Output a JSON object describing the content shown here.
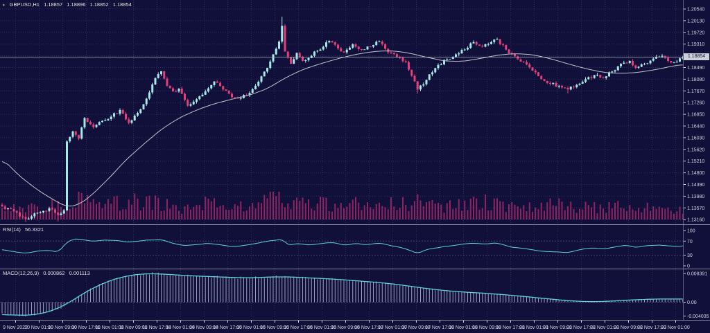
{
  "title": {
    "symbol": "GBPUSD,H1",
    "open": "1.18857",
    "high": "1.18896",
    "low": "1.18852",
    "close": "1.18854"
  },
  "price_axis": {
    "ticks": [
      "1.20540",
      "1.20130",
      "1.19720",
      "1.19310",
      "1.18900",
      "1.18490",
      "1.18080",
      "1.17670",
      "1.17260",
      "1.16850",
      "1.16440",
      "1.16030",
      "1.15620",
      "1.15210",
      "1.14800",
      "1.14390",
      "1.13980",
      "1.13570",
      "1.13160"
    ],
    "current_price_label": "1.18854"
  },
  "time_axis": {
    "labels": [
      "9 Nov 2022",
      "10 Nov 01:00",
      "10 Nov 09:00",
      "10 Nov 17:00",
      "11 Nov 01:00",
      "11 Nov 09:00",
      "11 Nov 17:00",
      "14 Nov 01:00",
      "14 Nov 09:00",
      "14 Nov 17:00",
      "15 Nov 01:00",
      "15 Nov 09:00",
      "15 Nov 17:00",
      "16 Nov 01:00",
      "16 Nov 09:00",
      "16 Nov 17:00",
      "17 Nov 01:00",
      "17 Nov 09:00",
      "17 Nov 17:00",
      "18 Nov 01:00",
      "18 Nov 09:00",
      "18 Nov 17:00",
      "21 Nov 01:00",
      "21 Nov 09:00",
      "21 Nov 17:00",
      "22 Nov 01:00",
      "22 Nov 09:00",
      "22 Nov 17:00",
      "23 Nov 01:00"
    ]
  },
  "colors": {
    "background": "#10103a",
    "grid": "#2e2e62",
    "bull": "#a6e9e6",
    "bear": "#e43f78",
    "ma_line": "#c4c4cc",
    "volume": "#8e2560",
    "indicator_line": "#5fd4d8",
    "macd_histogram": "#9aa0c4",
    "axis_text": "#d2d2e0",
    "separator": "#8c8ca0",
    "price_line": "#b4b4c0",
    "badge_bg": "#ccd0d8",
    "badge_text": "#101038",
    "level_line": "#40407a"
  },
  "chart_data": {
    "type": "candlestick+indicators",
    "symbol": "GBPUSD",
    "timeframe": "H1",
    "candle_count": 232,
    "panels": [
      "price+volume",
      "RSI",
      "MACD"
    ],
    "y_axis_range": [
      1.1316,
      1.2054
    ],
    "price_close_keypoints": [
      [
        0,
        1.1362
      ],
      [
        4,
        1.1345
      ],
      [
        8,
        1.1318
      ],
      [
        12,
        1.134
      ],
      [
        16,
        1.1355
      ],
      [
        19,
        1.1332
      ],
      [
        21,
        1.1348
      ],
      [
        22,
        1.159
      ],
      [
        24,
        1.1625
      ],
      [
        26,
        1.16
      ],
      [
        28,
        1.1672
      ],
      [
        31,
        1.164
      ],
      [
        34,
        1.1662
      ],
      [
        36,
        1.1668
      ],
      [
        40,
        1.17
      ],
      [
        43,
        1.1655
      ],
      [
        46,
        1.169
      ],
      [
        49,
        1.174
      ],
      [
        52,
        1.1812
      ],
      [
        54,
        1.1836
      ],
      [
        56,
        1.1785
      ],
      [
        58,
        1.1765
      ],
      [
        60,
        1.1775
      ],
      [
        63,
        1.1715
      ],
      [
        66,
        1.1738
      ],
      [
        69,
        1.1765
      ],
      [
        72,
        1.18
      ],
      [
        75,
        1.1772
      ],
      [
        78,
        1.1745
      ],
      [
        81,
        1.1742
      ],
      [
        84,
        1.176
      ],
      [
        88,
        1.1818
      ],
      [
        91,
        1.187
      ],
      [
        94,
        1.194
      ],
      [
        95,
        1.1995
      ],
      [
        96,
        1.1905
      ],
      [
        98,
        1.1862
      ],
      [
        100,
        1.19
      ],
      [
        102,
        1.1872
      ],
      [
        104,
        1.1882
      ],
      [
        106,
        1.1905
      ],
      [
        108,
        1.1912
      ],
      [
        111,
        1.1942
      ],
      [
        114,
        1.1916
      ],
      [
        116,
        1.1902
      ],
      [
        119,
        1.193
      ],
      [
        122,
        1.1912
      ],
      [
        125,
        1.1922
      ],
      [
        128,
        1.194
      ],
      [
        131,
        1.1902
      ],
      [
        134,
        1.1885
      ],
      [
        137,
        1.1868
      ],
      [
        139,
        1.182
      ],
      [
        141,
        1.1772
      ],
      [
        143,
        1.179
      ],
      [
        145,
        1.1825
      ],
      [
        148,
        1.1858
      ],
      [
        151,
        1.1878
      ],
      [
        154,
        1.1895
      ],
      [
        157,
        1.1912
      ],
      [
        160,
        1.1938
      ],
      [
        163,
        1.1922
      ],
      [
        166,
        1.1938
      ],
      [
        168,
        1.1948
      ],
      [
        171,
        1.1912
      ],
      [
        174,
        1.1888
      ],
      [
        177,
        1.1868
      ],
      [
        180,
        1.1838
      ],
      [
        183,
        1.1808
      ],
      [
        186,
        1.1792
      ],
      [
        189,
        1.1785
      ],
      [
        192,
        1.1772
      ],
      [
        195,
        1.1788
      ],
      [
        198,
        1.1808
      ],
      [
        201,
        1.1822
      ],
      [
        204,
        1.1812
      ],
      [
        207,
        1.1835
      ],
      [
        210,
        1.1862
      ],
      [
        213,
        1.1872
      ],
      [
        215,
        1.1848
      ],
      [
        218,
        1.1862
      ],
      [
        221,
        1.188
      ],
      [
        224,
        1.189
      ],
      [
        226,
        1.1872
      ],
      [
        228,
        1.1868
      ],
      [
        231,
        1.18854
      ]
    ],
    "wick_overrides": [
      {
        "i": 95,
        "high": 1.2027
      },
      {
        "i": 8,
        "low": 1.1308
      },
      {
        "i": 19,
        "low": 1.131
      },
      {
        "i": 22,
        "low": 1.1348
      },
      {
        "i": 141,
        "low": 1.1758
      },
      {
        "i": 192,
        "low": 1.1758
      }
    ],
    "ma_keypoints": [
      [
        0,
        1.153
      ],
      [
        6,
        1.1468
      ],
      [
        12,
        1.142
      ],
      [
        18,
        1.1382
      ],
      [
        22,
        1.136
      ],
      [
        26,
        1.1368
      ],
      [
        30,
        1.1398
      ],
      [
        36,
        1.1458
      ],
      [
        42,
        1.1525
      ],
      [
        48,
        1.158
      ],
      [
        54,
        1.1632
      ],
      [
        60,
        1.1672
      ],
      [
        66,
        1.17
      ],
      [
        72,
        1.1722
      ],
      [
        78,
        1.1738
      ],
      [
        84,
        1.1752
      ],
      [
        90,
        1.1775
      ],
      [
        96,
        1.1812
      ],
      [
        102,
        1.1842
      ],
      [
        108,
        1.1862
      ],
      [
        114,
        1.188
      ],
      [
        120,
        1.1895
      ],
      [
        126,
        1.1905
      ],
      [
        132,
        1.1908
      ],
      [
        138,
        1.19
      ],
      [
        144,
        1.1885
      ],
      [
        150,
        1.1872
      ],
      [
        156,
        1.187
      ],
      [
        162,
        1.188
      ],
      [
        168,
        1.1892
      ],
      [
        174,
        1.1898
      ],
      [
        180,
        1.1894
      ],
      [
        186,
        1.188
      ],
      [
        192,
        1.1862
      ],
      [
        198,
        1.1845
      ],
      [
        204,
        1.1832
      ],
      [
        210,
        1.1828
      ],
      [
        216,
        1.1832
      ],
      [
        222,
        1.1842
      ],
      [
        228,
        1.1855
      ],
      [
        231,
        1.186
      ]
    ],
    "volume_envelope_keypoints": [
      [
        0,
        0.45
      ],
      [
        8,
        0.5
      ],
      [
        16,
        0.6
      ],
      [
        20,
        0.8
      ],
      [
        22,
        1.0
      ],
      [
        26,
        0.9
      ],
      [
        32,
        0.75
      ],
      [
        40,
        0.8
      ],
      [
        48,
        0.85
      ],
      [
        52,
        0.9
      ],
      [
        58,
        0.6
      ],
      [
        60,
        0.35
      ],
      [
        64,
        0.55
      ],
      [
        68,
        0.75
      ],
      [
        74,
        0.65
      ],
      [
        80,
        0.55
      ],
      [
        86,
        0.6
      ],
      [
        92,
        1.0
      ],
      [
        96,
        0.95
      ],
      [
        102,
        0.7
      ],
      [
        108,
        0.75
      ],
      [
        114,
        0.7
      ],
      [
        120,
        0.72
      ],
      [
        126,
        0.65
      ],
      [
        132,
        0.7
      ],
      [
        138,
        0.8
      ],
      [
        141,
        0.9
      ],
      [
        146,
        0.65
      ],
      [
        152,
        0.6
      ],
      [
        158,
        0.7
      ],
      [
        164,
        0.8
      ],
      [
        170,
        0.65
      ],
      [
        176,
        0.55
      ],
      [
        182,
        0.6
      ],
      [
        188,
        0.75
      ],
      [
        194,
        0.6
      ],
      [
        200,
        0.55
      ],
      [
        206,
        0.55
      ],
      [
        212,
        0.7
      ],
      [
        218,
        0.6
      ],
      [
        224,
        0.55
      ],
      [
        229,
        0.45
      ],
      [
        231,
        0.35
      ]
    ],
    "rsi": {
      "label": "RSI(14)",
      "value": "56.3321",
      "ticks": [
        "100",
        "70",
        "30",
        "0"
      ],
      "levels": [
        70,
        30
      ],
      "range": [
        0,
        100
      ],
      "keypoints": [
        [
          0,
          46
        ],
        [
          4,
          40
        ],
        [
          8,
          36
        ],
        [
          12,
          42
        ],
        [
          16,
          44
        ],
        [
          19,
          38
        ],
        [
          22,
          68
        ],
        [
          24,
          75
        ],
        [
          26,
          77
        ],
        [
          30,
          70
        ],
        [
          34,
          72
        ],
        [
          38,
          73
        ],
        [
          42,
          67
        ],
        [
          46,
          70
        ],
        [
          50,
          73
        ],
        [
          54,
          74
        ],
        [
          58,
          64
        ],
        [
          62,
          57
        ],
        [
          66,
          60
        ],
        [
          70,
          64
        ],
        [
          74,
          60
        ],
        [
          78,
          55
        ],
        [
          82,
          57
        ],
        [
          86,
          63
        ],
        [
          90,
          69
        ],
        [
          94,
          74
        ],
        [
          95,
          77
        ],
        [
          97,
          58
        ],
        [
          100,
          63
        ],
        [
          104,
          59
        ],
        [
          108,
          63
        ],
        [
          112,
          66
        ],
        [
          116,
          59
        ],
        [
          120,
          63
        ],
        [
          124,
          60
        ],
        [
          128,
          64
        ],
        [
          132,
          57
        ],
        [
          136,
          51
        ],
        [
          139,
          42
        ],
        [
          141,
          35
        ],
        [
          144,
          46
        ],
        [
          148,
          52
        ],
        [
          152,
          56
        ],
        [
          156,
          61
        ],
        [
          160,
          65
        ],
        [
          164,
          61
        ],
        [
          168,
          65
        ],
        [
          172,
          55
        ],
        [
          176,
          50
        ],
        [
          180,
          45
        ],
        [
          184,
          41
        ],
        [
          188,
          40
        ],
        [
          192,
          37
        ],
        [
          196,
          46
        ],
        [
          200,
          51
        ],
        [
          204,
          48
        ],
        [
          208,
          54
        ],
        [
          212,
          59
        ],
        [
          215,
          52
        ],
        [
          218,
          56
        ],
        [
          222,
          59
        ],
        [
          226,
          57
        ],
        [
          229,
          54
        ],
        [
          231,
          56.3
        ]
      ]
    },
    "macd": {
      "label": "MACD(12,26,9)",
      "value_macd": "0.000862",
      "value_signal": "0.001113",
      "ticks": [
        "0.008391",
        "0.00",
        "-0.004035"
      ],
      "axis_max": 0.008391,
      "axis_min": -0.004035,
      "keypoints": [
        [
          0,
          -0.0033
        ],
        [
          4,
          -0.0038
        ],
        [
          8,
          -0.004
        ],
        [
          12,
          -0.0036
        ],
        [
          16,
          -0.0028
        ],
        [
          20,
          -0.0018
        ],
        [
          22,
          -0.0005
        ],
        [
          26,
          0.0018
        ],
        [
          30,
          0.0038
        ],
        [
          34,
          0.0055
        ],
        [
          38,
          0.0068
        ],
        [
          42,
          0.0077
        ],
        [
          46,
          0.0082
        ],
        [
          50,
          0.0084
        ],
        [
          54,
          0.0083
        ],
        [
          58,
          0.008
        ],
        [
          64,
          0.0077
        ],
        [
          70,
          0.0075
        ],
        [
          76,
          0.0073
        ],
        [
          82,
          0.0071
        ],
        [
          88,
          0.0072
        ],
        [
          94,
          0.0075
        ],
        [
          100,
          0.0073
        ],
        [
          106,
          0.007
        ],
        [
          112,
          0.0068
        ],
        [
          118,
          0.0064
        ],
        [
          124,
          0.006
        ],
        [
          130,
          0.0056
        ],
        [
          136,
          0.005
        ],
        [
          142,
          0.0042
        ],
        [
          148,
          0.0036
        ],
        [
          154,
          0.0031
        ],
        [
          160,
          0.0028
        ],
        [
          166,
          0.0025
        ],
        [
          172,
          0.0021
        ],
        [
          178,
          0.0016
        ],
        [
          184,
          0.0011
        ],
        [
          190,
          0.0006
        ],
        [
          196,
          0.0002
        ],
        [
          202,
          0.0001
        ],
        [
          208,
          0.0004
        ],
        [
          214,
          0.0007
        ],
        [
          220,
          0.0009
        ],
        [
          226,
          0.001
        ],
        [
          231,
          0.00086
        ]
      ]
    }
  }
}
